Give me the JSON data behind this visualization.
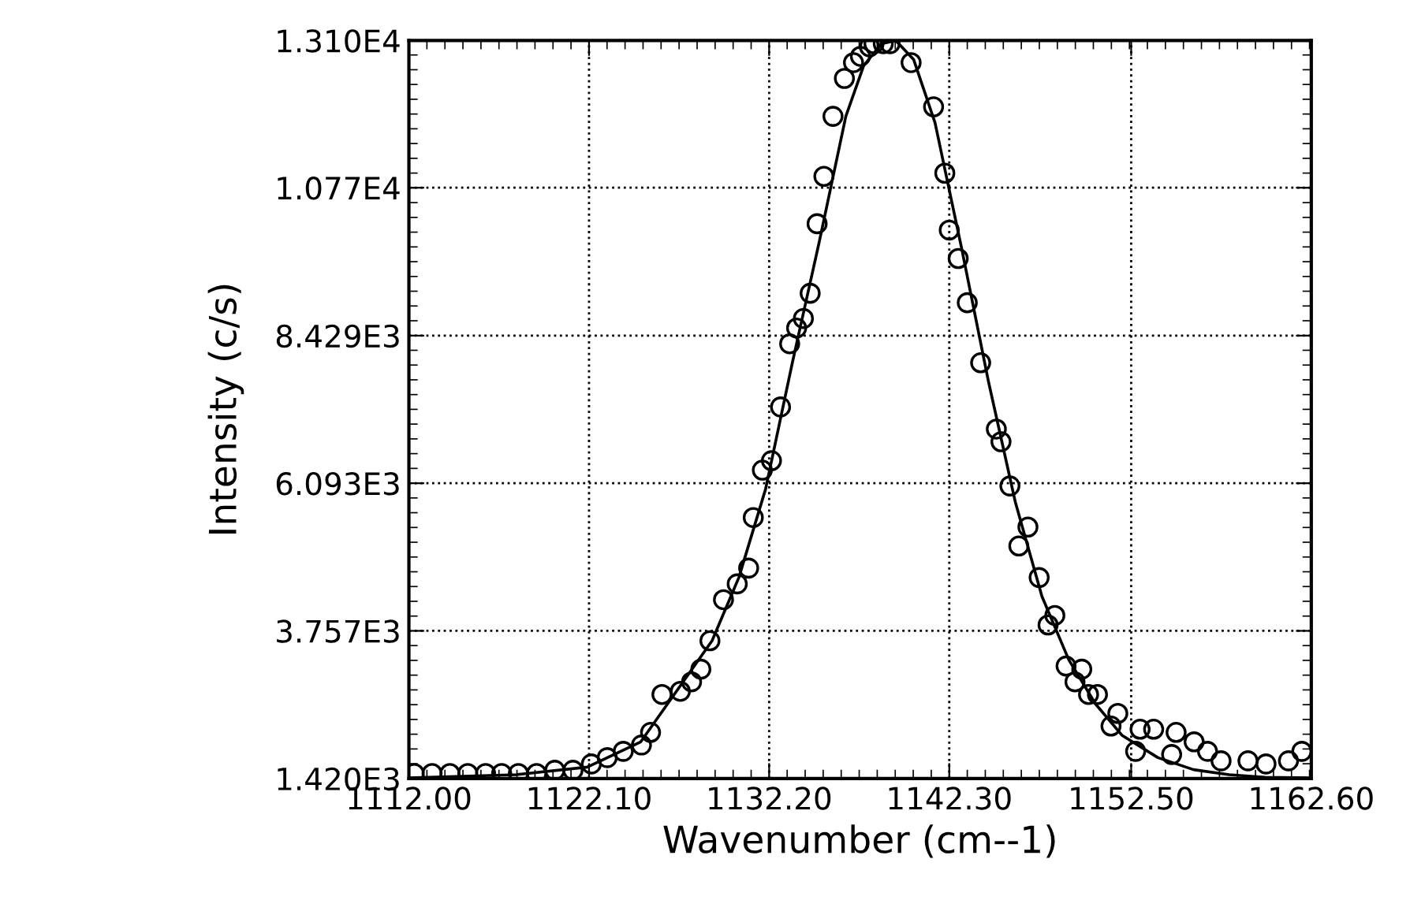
{
  "chart_data": {
    "type": "scatter",
    "xlabel": "Wavenumber (cm--1)",
    "ylabel": "Intensity (c/s)",
    "xlim": [
      1112.0,
      1162.6
    ],
    "ylim": [
      1420,
      13100
    ],
    "xticks": [
      {
        "value": 1112.0,
        "label": "1112.00"
      },
      {
        "value": 1122.1,
        "label": "1122.10"
      },
      {
        "value": 1132.2,
        "label": "1132.20"
      },
      {
        "value": 1142.3,
        "label": "1142.30"
      },
      {
        "value": 1152.5,
        "label": "1152.50"
      },
      {
        "value": 1162.6,
        "label": "1162.60"
      }
    ],
    "yticks": [
      {
        "value": 1420,
        "label": "1.420E3"
      },
      {
        "value": 3757,
        "label": "3.757E3"
      },
      {
        "value": 6093,
        "label": "6.093E3"
      },
      {
        "value": 8429,
        "label": "8.429E3"
      },
      {
        "value": 10770,
        "label": "1.077E4"
      },
      {
        "value": 13100,
        "label": "1.310E4"
      }
    ],
    "grid": true,
    "legend": false,
    "series": [
      {
        "marker": "circle",
        "color": "#000000",
        "x": [
          1112.3,
          1113.3,
          1114.3,
          1115.3,
          1116.3,
          1117.2,
          1118.14,
          1119.16,
          1120.18,
          1121.2,
          1122.23,
          1123.12,
          1124.02,
          1125.04,
          1125.55,
          1126.19,
          1127.22,
          1127.85,
          1128.37,
          1128.88,
          1129.64,
          1130.41,
          1131.05,
          1131.31,
          1131.82,
          1132.33,
          1132.84,
          1133.35,
          1133.74,
          1134.12,
          1134.5,
          1134.89,
          1135.27,
          1135.78,
          1136.42,
          1136.93,
          1137.32,
          1137.83,
          1138.08,
          1138.6,
          1138.98,
          1140.16,
          1141.42,
          1142.05,
          1142.3,
          1142.8,
          1143.31,
          1144.06,
          1144.94,
          1145.2,
          1145.7,
          1146.2,
          1146.71,
          1147.34,
          1147.84,
          1148.22,
          1148.85,
          1149.35,
          1149.73,
          1150.11,
          1150.61,
          1151.37,
          1151.75,
          1152.75,
          1153.0,
          1153.76,
          1155.02,
          1154.77,
          1156.03,
          1156.78,
          1157.54,
          1159.05,
          1160.06,
          1161.32,
          1162.07
        ],
        "values": [
          1500,
          1500,
          1500,
          1500,
          1500,
          1500,
          1500,
          1500,
          1550,
          1550,
          1650,
          1750,
          1850,
          1950,
          2150,
          2750,
          2800,
          2950,
          3150,
          3600,
          4250,
          4500,
          4750,
          5550,
          6300,
          6450,
          7300,
          8300,
          8550,
          8700,
          9100,
          10200,
          10950,
          11900,
          12500,
          12750,
          12850,
          13000,
          13050,
          13050,
          13050,
          12750,
          12050,
          11000,
          10100,
          9650,
          8950,
          8000,
          6950,
          6750,
          6050,
          5100,
          5400,
          4600,
          3850,
          4000,
          3200,
          2950,
          3150,
          2750,
          2750,
          2250,
          2450,
          1850,
          2200,
          2200,
          2150,
          1800,
          2000,
          1850,
          1700,
          1700,
          1650,
          1700,
          1850
        ]
      },
      {
        "type": "line",
        "marker": "none",
        "line_style": "solid",
        "color": "#000000",
        "x": [
          1112.0,
          1118.0,
          1122.0,
          1125.0,
          1127.0,
          1129.0,
          1130.5,
          1132.0,
          1133.5,
          1135.0,
          1136.5,
          1137.5,
          1138.5,
          1139.3,
          1140.3,
          1141.5,
          1143.0,
          1144.5,
          1146.0,
          1147.5,
          1149.0,
          1150.5,
          1152.0,
          1154.0,
          1156.0,
          1158.0,
          1160.0,
          1162.6
        ],
        "values": [
          1430,
          1480,
          1600,
          2000,
          2800,
          3600,
          4600,
          6000,
          8000,
          9900,
          11900,
          12700,
          13050,
          13100,
          12800,
          11800,
          9800,
          7700,
          5800,
          4300,
          3300,
          2600,
          2100,
          1750,
          1560,
          1480,
          1440,
          1430
        ]
      }
    ]
  }
}
